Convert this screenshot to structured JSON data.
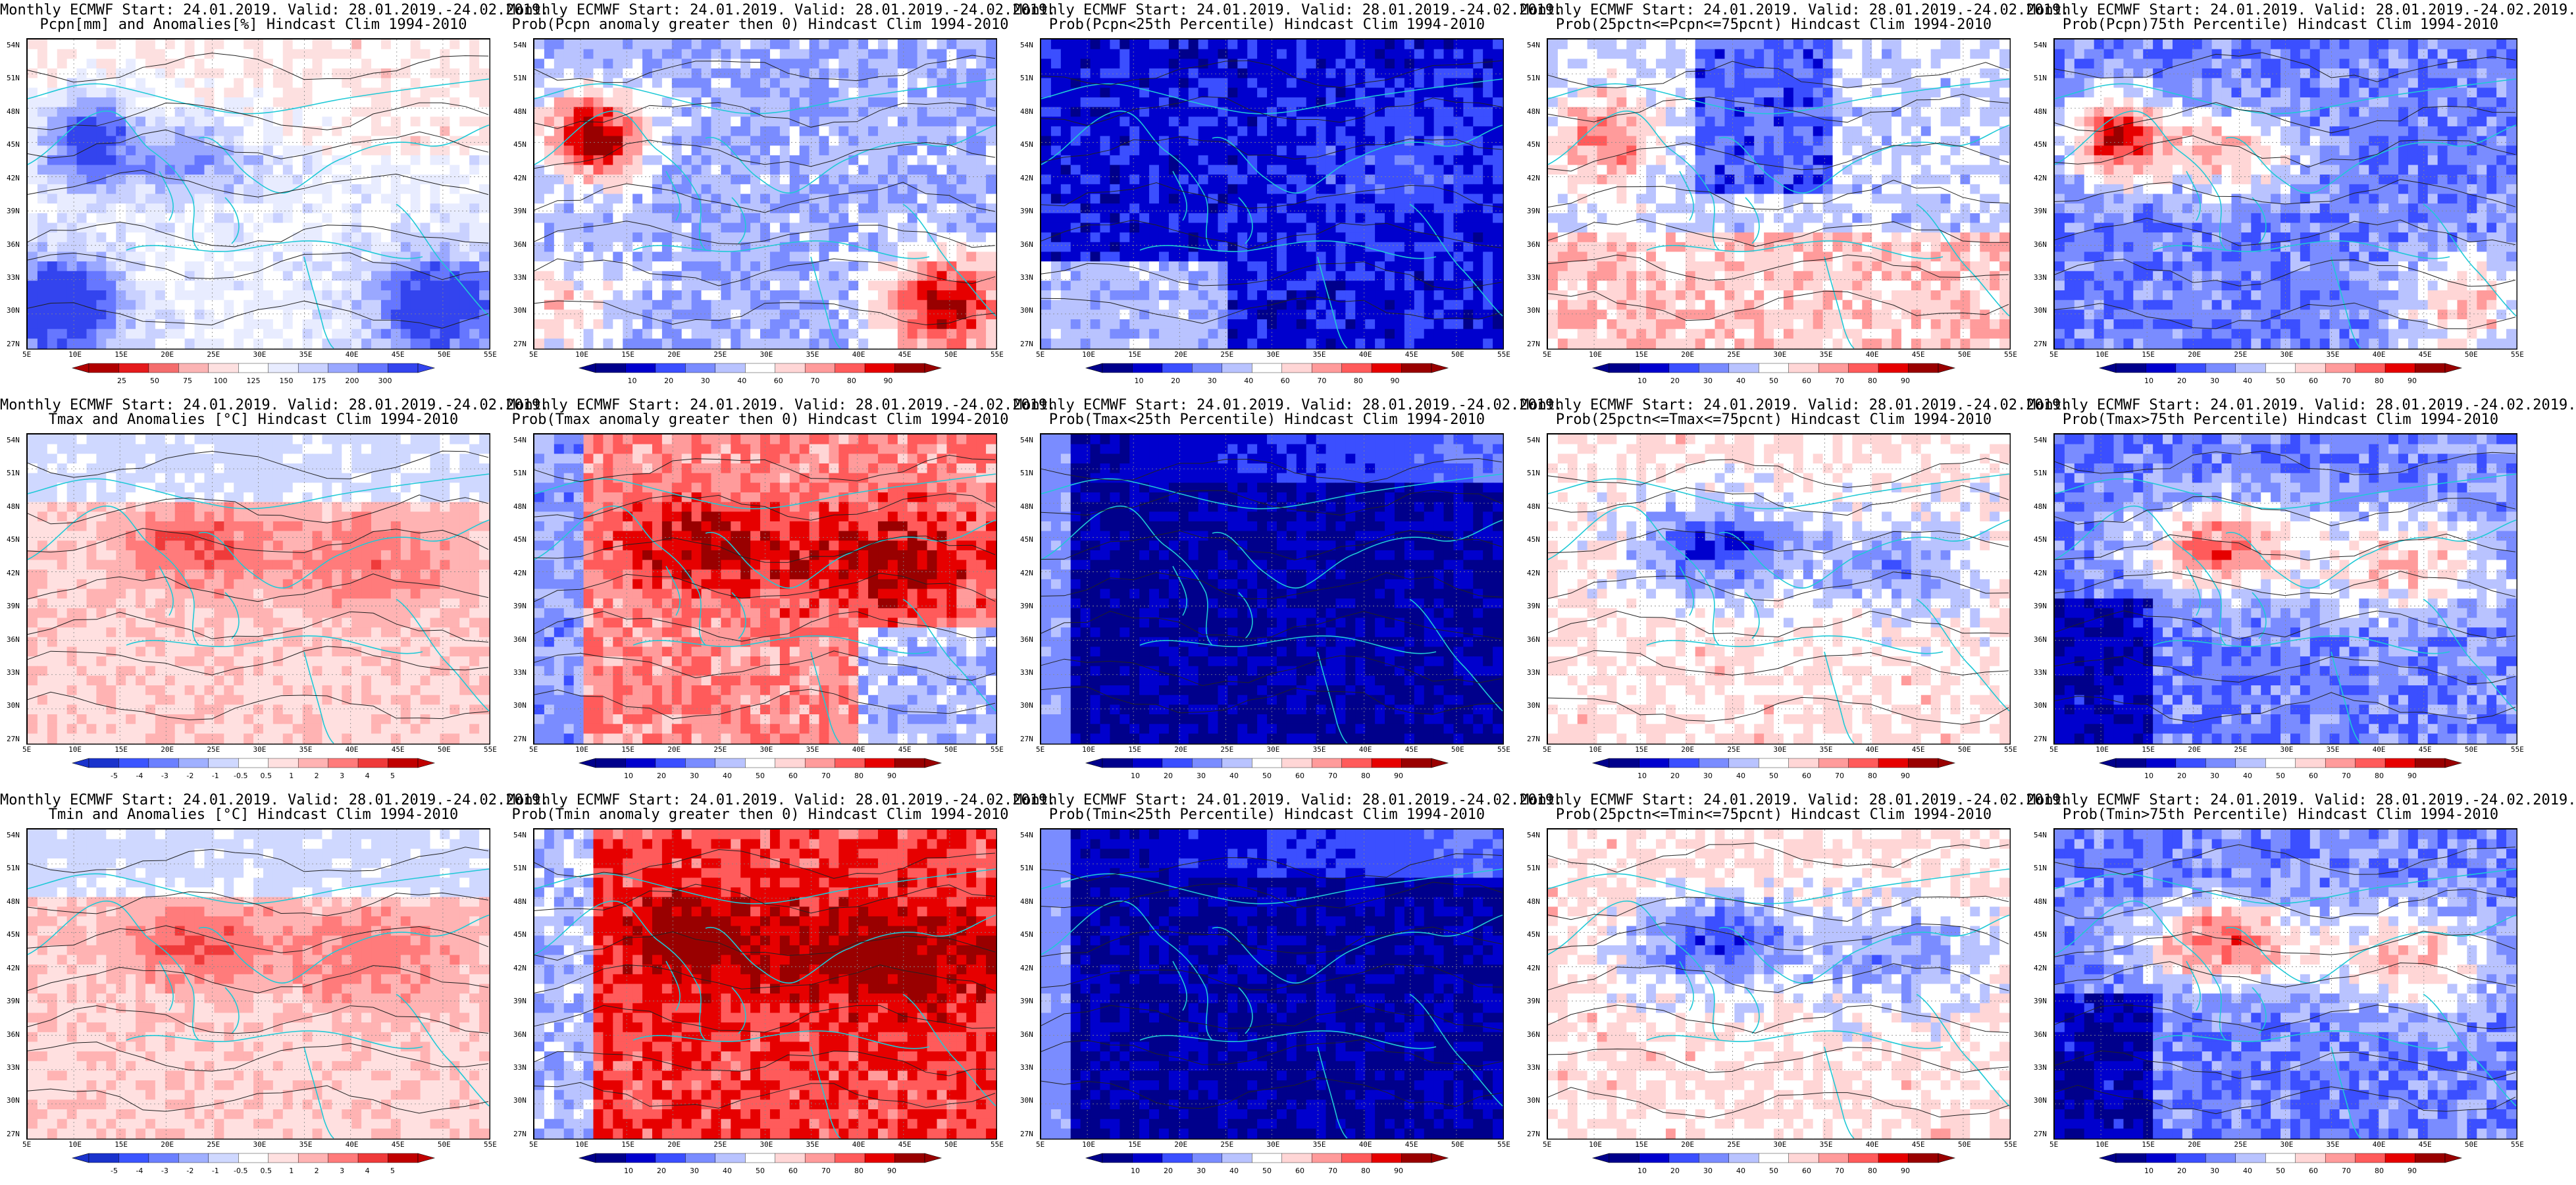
{
  "colors": {
    "anom_precip": [
      "#b00000",
      "#e41a1c",
      "#f46d6d",
      "#fbb4b4",
      "#fde0e0",
      "#ffffff",
      "#e8ecff",
      "#c9d1ff",
      "#9aa8ff",
      "#6677ff",
      "#3344ee"
    ],
    "prob": [
      "#00008b",
      "#0000cd",
      "#3b4fff",
      "#7a8cff",
      "#b9c3ff",
      "#ffffff",
      "#ffd6d6",
      "#ff9b9b",
      "#ff5b5b",
      "#e60000",
      "#990000"
    ],
    "anom_temp": [
      "#1a33cc",
      "#3b55ff",
      "#6b80ff",
      "#a0b0ff",
      "#cfd8ff",
      "#ffffff",
      "#ffe0e0",
      "#ffb3b3",
      "#ff7b7b",
      "#ef3b3b",
      "#c00000"
    ]
  },
  "lat_labels": [
    "54N",
    "51N",
    "48N",
    "45N",
    "42N",
    "39N",
    "36N",
    "33N",
    "30N",
    "27N"
  ],
  "lon_labels": [
    "5E",
    "10E",
    "15E",
    "20E",
    "25E",
    "30E",
    "35E",
    "40E",
    "45E",
    "50E",
    "55E"
  ],
  "colorbars": {
    "precip_anom": {
      "ticks": [
        "25",
        "50",
        "75",
        "100",
        "125",
        "150",
        "175",
        "200",
        "300"
      ]
    },
    "prob": {
      "ticks": [
        "10",
        "20",
        "30",
        "40",
        "60",
        "70",
        "80",
        "90"
      ]
    },
    "prob2": {
      "ticks": [
        "10",
        "20",
        "30",
        "40",
        "50",
        "60",
        "70",
        "80",
        "90"
      ]
    },
    "temp_anom": {
      "ticks": [
        "-5",
        "-4",
        "-3",
        "-2",
        "-1",
        "-0.5",
        "0.5",
        "1",
        "2",
        "3",
        "4",
        "5"
      ]
    }
  },
  "panels": [
    {
      "row": 0,
      "col": 0,
      "title1": "Monthly ECMWF Start: 24.01.2019. Valid: 28.01.2019.-24.02.2019.",
      "title2": "Pcpn[mm] and Anomalies[%] Hindcast Clim 1994-2010",
      "palette": "anom_precip",
      "bar": "precip_anom",
      "style": "pa"
    },
    {
      "row": 0,
      "col": 1,
      "title1": "Monthly ECMWF Start: 24.01.2019. Valid: 28.01.2019.-24.02.2019.",
      "title2": "Prob(Pcpn anomaly greater then 0) Hindcast Clim 1994-2010",
      "palette": "prob",
      "bar": "prob",
      "style": "p0"
    },
    {
      "row": 0,
      "col": 2,
      "title1": "Monthly ECMWF Start: 24.01.2019. Valid: 28.01.2019.-24.02.2019.",
      "title2": "Prob(Pcpn<25th Percentile) Hindcast Clim 1994-2010",
      "palette": "prob",
      "bar": "prob",
      "style": "plow"
    },
    {
      "row": 0,
      "col": 3,
      "title1": "Monthly ECMWF Start: 24.01.2019. Valid: 28.01.2019.-24.02.2019.",
      "title2": "Prob(25pctn<=Pcpn<=75pcnt) Hindcast Clim 1994-2010",
      "palette": "prob",
      "bar": "prob2",
      "style": "pmid"
    },
    {
      "row": 0,
      "col": 4,
      "title1": "Monthly ECMWF Start: 24.01.2019. Valid: 28.01.2019.-24.02.2019.",
      "title2": "Prob(Pcpn)75th Percentile) Hindcast Clim 1994-2010",
      "palette": "prob",
      "bar": "prob2",
      "style": "phigh"
    },
    {
      "row": 1,
      "col": 0,
      "title1": "Monthly ECMWF Start: 24.01.2019. Valid: 28.01.2019.-24.02.2019.",
      "title2": "Tmax and Anomalies [°C] Hindcast Clim 1994-2010",
      "palette": "anom_temp",
      "bar": "temp_anom",
      "style": "ta"
    },
    {
      "row": 1,
      "col": 1,
      "title1": "Monthly ECMWF Start: 24.01.2019. Valid: 28.01.2019.-24.02.2019.",
      "title2": "Prob(Tmax anomaly greater then 0) Hindcast Clim 1994-2010",
      "palette": "prob",
      "bar": "prob2",
      "style": "t0"
    },
    {
      "row": 1,
      "col": 2,
      "title1": "Monthly ECMWF Start: 24.01.2019. Valid: 28.01.2019.-24.02.2019.",
      "title2": "Prob(Tmax<25th Percentile) Hindcast Clim 1994-2010",
      "palette": "prob",
      "bar": "prob2",
      "style": "tlow"
    },
    {
      "row": 1,
      "col": 3,
      "title1": "Monthly ECMWF Start: 24.01.2019. Valid: 28.01.2019.-24.02.2019.",
      "title2": "Prob(25pctn<=Tmax<=75pcnt) Hindcast Clim 1994-2010",
      "palette": "prob",
      "bar": "prob2",
      "style": "tmid"
    },
    {
      "row": 1,
      "col": 4,
      "title1": "Monthly ECMWF Start: 24.01.2019. Valid: 28.01.2019.-24.02.2019.",
      "title2": "Prob(Tmax>75th Percentile) Hindcast Clim 1994-2010",
      "palette": "prob",
      "bar": "prob2",
      "style": "thigh"
    },
    {
      "row": 2,
      "col": 0,
      "title1": "Monthly ECMWF Start: 24.01.2019. Valid: 28.01.2019.-24.02.2019.",
      "title2": "Tmin and Anomalies [°C] Hindcast Clim 1994-2010",
      "palette": "anom_temp",
      "bar": "temp_anom",
      "style": "ta"
    },
    {
      "row": 2,
      "col": 1,
      "title1": "Monthly ECMWF Start: 24.01.2019. Valid: 28.01.2019.-24.02.2019.",
      "title2": "Prob(Tmin anomaly greater then 0) Hindcast Clim 1994-2010",
      "palette": "prob",
      "bar": "prob2",
      "style": "t0b"
    },
    {
      "row": 2,
      "col": 2,
      "title1": "Monthly ECMWF Start: 24.01.2019. Valid: 28.01.2019.-24.02.2019.",
      "title2": "Prob(Tmin<25th Percentile) Hindcast Clim 1994-2010",
      "palette": "prob",
      "bar": "prob2",
      "style": "tlow"
    },
    {
      "row": 2,
      "col": 3,
      "title1": "Monthly ECMWF Start: 24.01.2019. Valid: 28.01.2019.-24.02.2019.",
      "title2": "Prob(25pctn<=Tmin<=75pcnt) Hindcast Clim 1994-2010",
      "palette": "prob",
      "bar": "prob2",
      "style": "tmid"
    },
    {
      "row": 2,
      "col": 4,
      "title1": "Monthly ECMWF Start: 24.01.2019. Valid: 28.01.2019.-24.02.2019.",
      "title2": "Prob(Tmin>75th Percentile) Hindcast Clim 1994-2010",
      "palette": "prob",
      "bar": "prob2",
      "style": "thigh"
    }
  ]
}
